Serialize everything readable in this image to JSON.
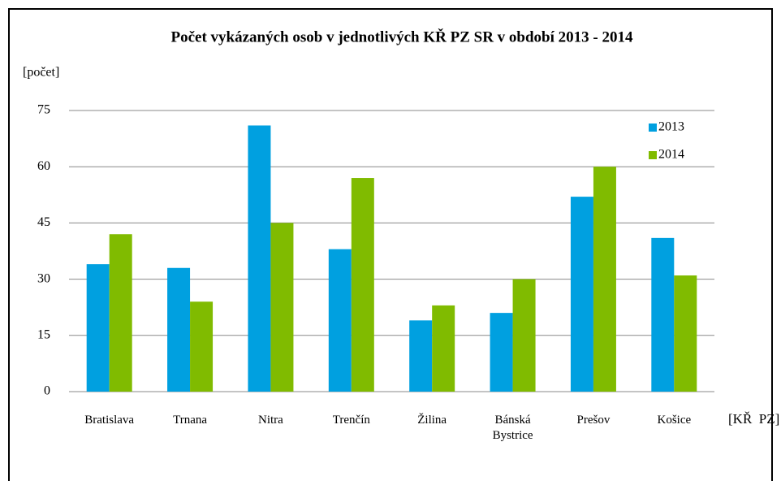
{
  "chart_data": {
    "type": "bar",
    "title": "Počet vykázaných osob v jednotlivých KŘ PZ SR v období  2013 - 2014",
    "y_label": "[počet]",
    "x_label": "[KŘ  PZ]",
    "categories": [
      "Bratislava",
      "Trnana",
      "Nitra",
      "Trenčín",
      "Žilina",
      "Bánská Bystrice",
      "Prešov",
      "Košice"
    ],
    "series": [
      {
        "name": "2013",
        "color": "#00a0e0",
        "values": [
          34,
          33,
          71,
          38,
          19,
          21,
          52,
          41
        ]
      },
      {
        "name": "2014",
        "color": "#80bb00",
        "values": [
          42,
          24,
          45,
          57,
          23,
          30,
          60,
          31
        ]
      }
    ],
    "ylim": [
      0,
      75
    ],
    "yticks": [
      0,
      15,
      30,
      45,
      60,
      75
    ],
    "grid": true,
    "legend": "top-right"
  }
}
